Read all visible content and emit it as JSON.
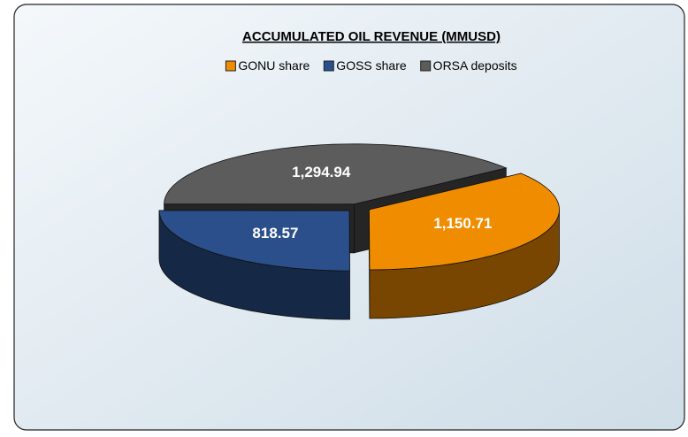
{
  "chart_data": {
    "type": "pie3d",
    "title": "ACCUMULATED OIL REVENUE (MMUSD)",
    "categories": [
      "GONU share",
      "GOSS share",
      "ORSA deposits"
    ],
    "values": [
      1150.71,
      818.57,
      1294.94
    ],
    "value_labels": [
      "1,150.71",
      "818.57",
      "1,294.94"
    ],
    "colors": [
      "#f08c00",
      "#2a4f8a",
      "#5c5c5c"
    ],
    "legend": "top"
  }
}
